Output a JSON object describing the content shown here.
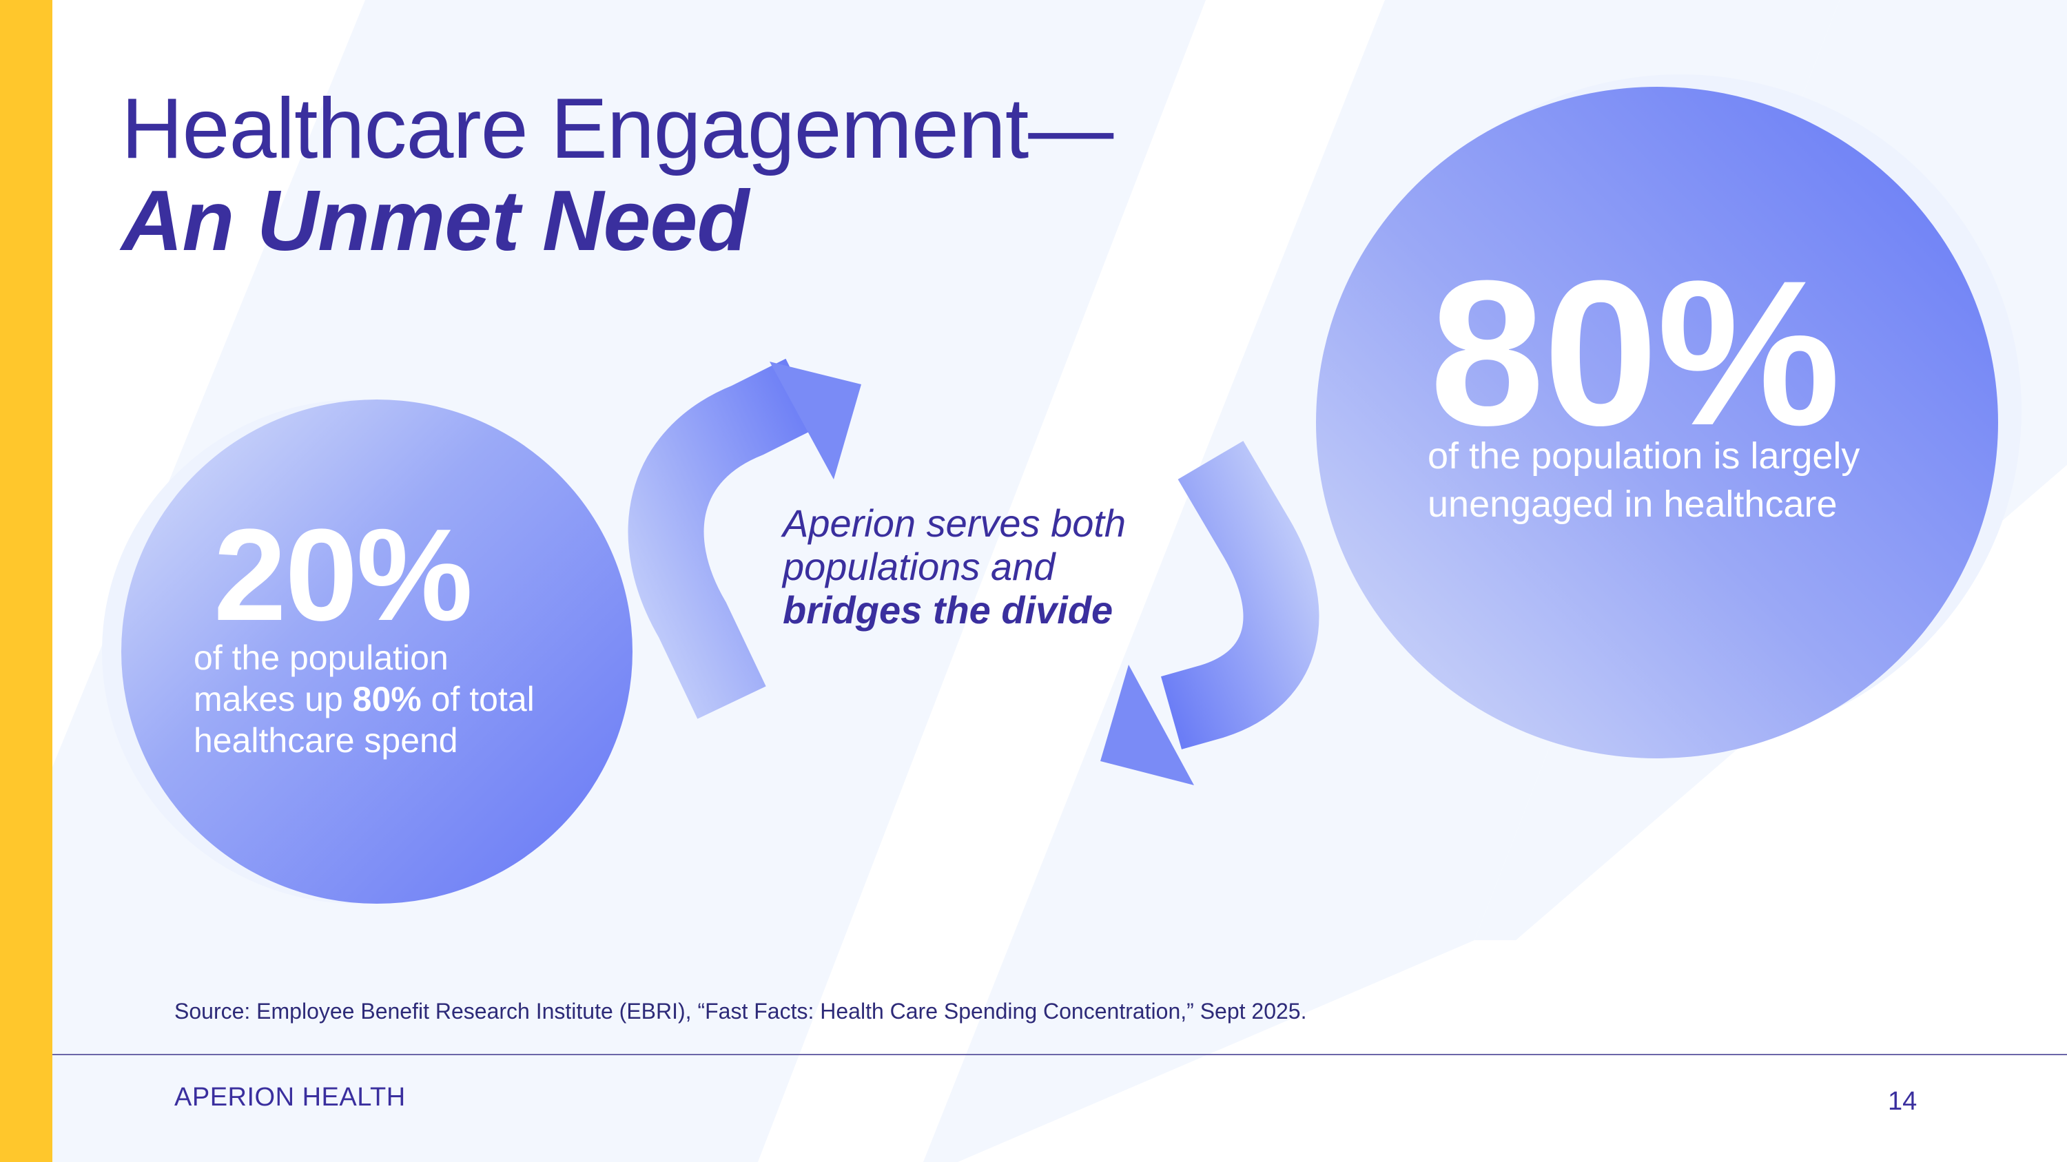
{
  "slide": {
    "title_line1": "Healthcare Engagement—",
    "title_line2": "An Unmet Need",
    "stat_left": {
      "value": "20%",
      "desc_line1": "of the population",
      "desc_pre": "makes up ",
      "desc_bold": "80%",
      "desc_post": " of total",
      "desc_line3": "healthcare spend"
    },
    "stat_right": {
      "value": "80%",
      "desc_line1": "of the population is largely",
      "desc_line2": "unengaged in healthcare"
    },
    "center": {
      "line1": "Aperion serves both",
      "line2": "populations and",
      "line3": "bridges the divide"
    },
    "source": "Source: Employee Benefit Research Institute (EBRI), “Fast Facts: Health Care Spending Concentration,” Sept 2025.",
    "footer_brand": "APERION HEALTH",
    "page_number": "14"
  },
  "colors": {
    "accent_yellow": "#FFC72C",
    "title_navy": "#3A2F9E",
    "circle_blue": "#6478F6",
    "background_tint": "#F3F7FE"
  },
  "icons": [
    "curved-arrow-up-icon",
    "curved-arrow-down-icon"
  ]
}
